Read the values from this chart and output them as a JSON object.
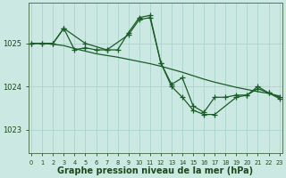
{
  "bg_color": "#cce8e2",
  "grid_color": "#aad4cc",
  "line_color": "#1a5c28",
  "xlabel": "Graphe pression niveau de la mer (hPa)",
  "xlabel_fontsize": 7,
  "yticks": [
    1023,
    1024,
    1025
  ],
  "ylim": [
    1022.45,
    1025.95
  ],
  "xlim": [
    -0.3,
    23.3
  ],
  "series1_x": [
    0,
    1,
    2,
    3,
    4,
    5,
    6,
    7,
    8,
    9,
    10,
    11,
    12,
    13,
    14,
    15,
    16,
    17,
    18,
    19,
    20,
    21,
    22,
    23
  ],
  "series1_y": [
    1025.0,
    1025.0,
    1025.0,
    1025.35,
    1024.85,
    1024.9,
    1024.85,
    1024.85,
    1024.85,
    1025.25,
    1025.6,
    1025.65,
    1024.55,
    1024.05,
    1024.2,
    1023.55,
    1023.4,
    1023.75,
    1023.75,
    1023.8,
    1023.8,
    1024.0,
    1023.85,
    1023.75
  ],
  "series2_x": [
    0,
    1,
    2,
    3,
    4,
    5,
    6,
    7,
    8,
    9,
    10,
    11,
    12,
    13,
    14,
    15,
    16,
    17,
    18,
    19,
    20,
    21,
    22,
    23
  ],
  "series2_y": [
    1025.0,
    1025.0,
    1024.98,
    1024.95,
    1024.88,
    1024.82,
    1024.76,
    1024.72,
    1024.68,
    1024.63,
    1024.58,
    1024.53,
    1024.47,
    1024.4,
    1024.33,
    1024.25,
    1024.17,
    1024.1,
    1024.04,
    1023.98,
    1023.93,
    1023.88,
    1023.84,
    1023.78
  ],
  "series3_x": [
    0,
    1,
    2,
    3,
    5,
    7,
    9,
    10,
    11,
    12,
    13,
    14,
    15,
    16,
    17,
    19,
    20,
    21,
    22,
    23
  ],
  "series3_y": [
    1025.0,
    1025.0,
    1025.0,
    1025.35,
    1025.0,
    1024.85,
    1025.2,
    1025.55,
    1025.6,
    1024.55,
    1024.0,
    1023.75,
    1023.45,
    1023.35,
    1023.35,
    1023.75,
    1023.8,
    1023.95,
    1023.85,
    1023.72
  ],
  "linewidth": 0.9,
  "marker_size": 3.0,
  "tick_label_color": "#1a4a1a",
  "spine_color": "#557755"
}
